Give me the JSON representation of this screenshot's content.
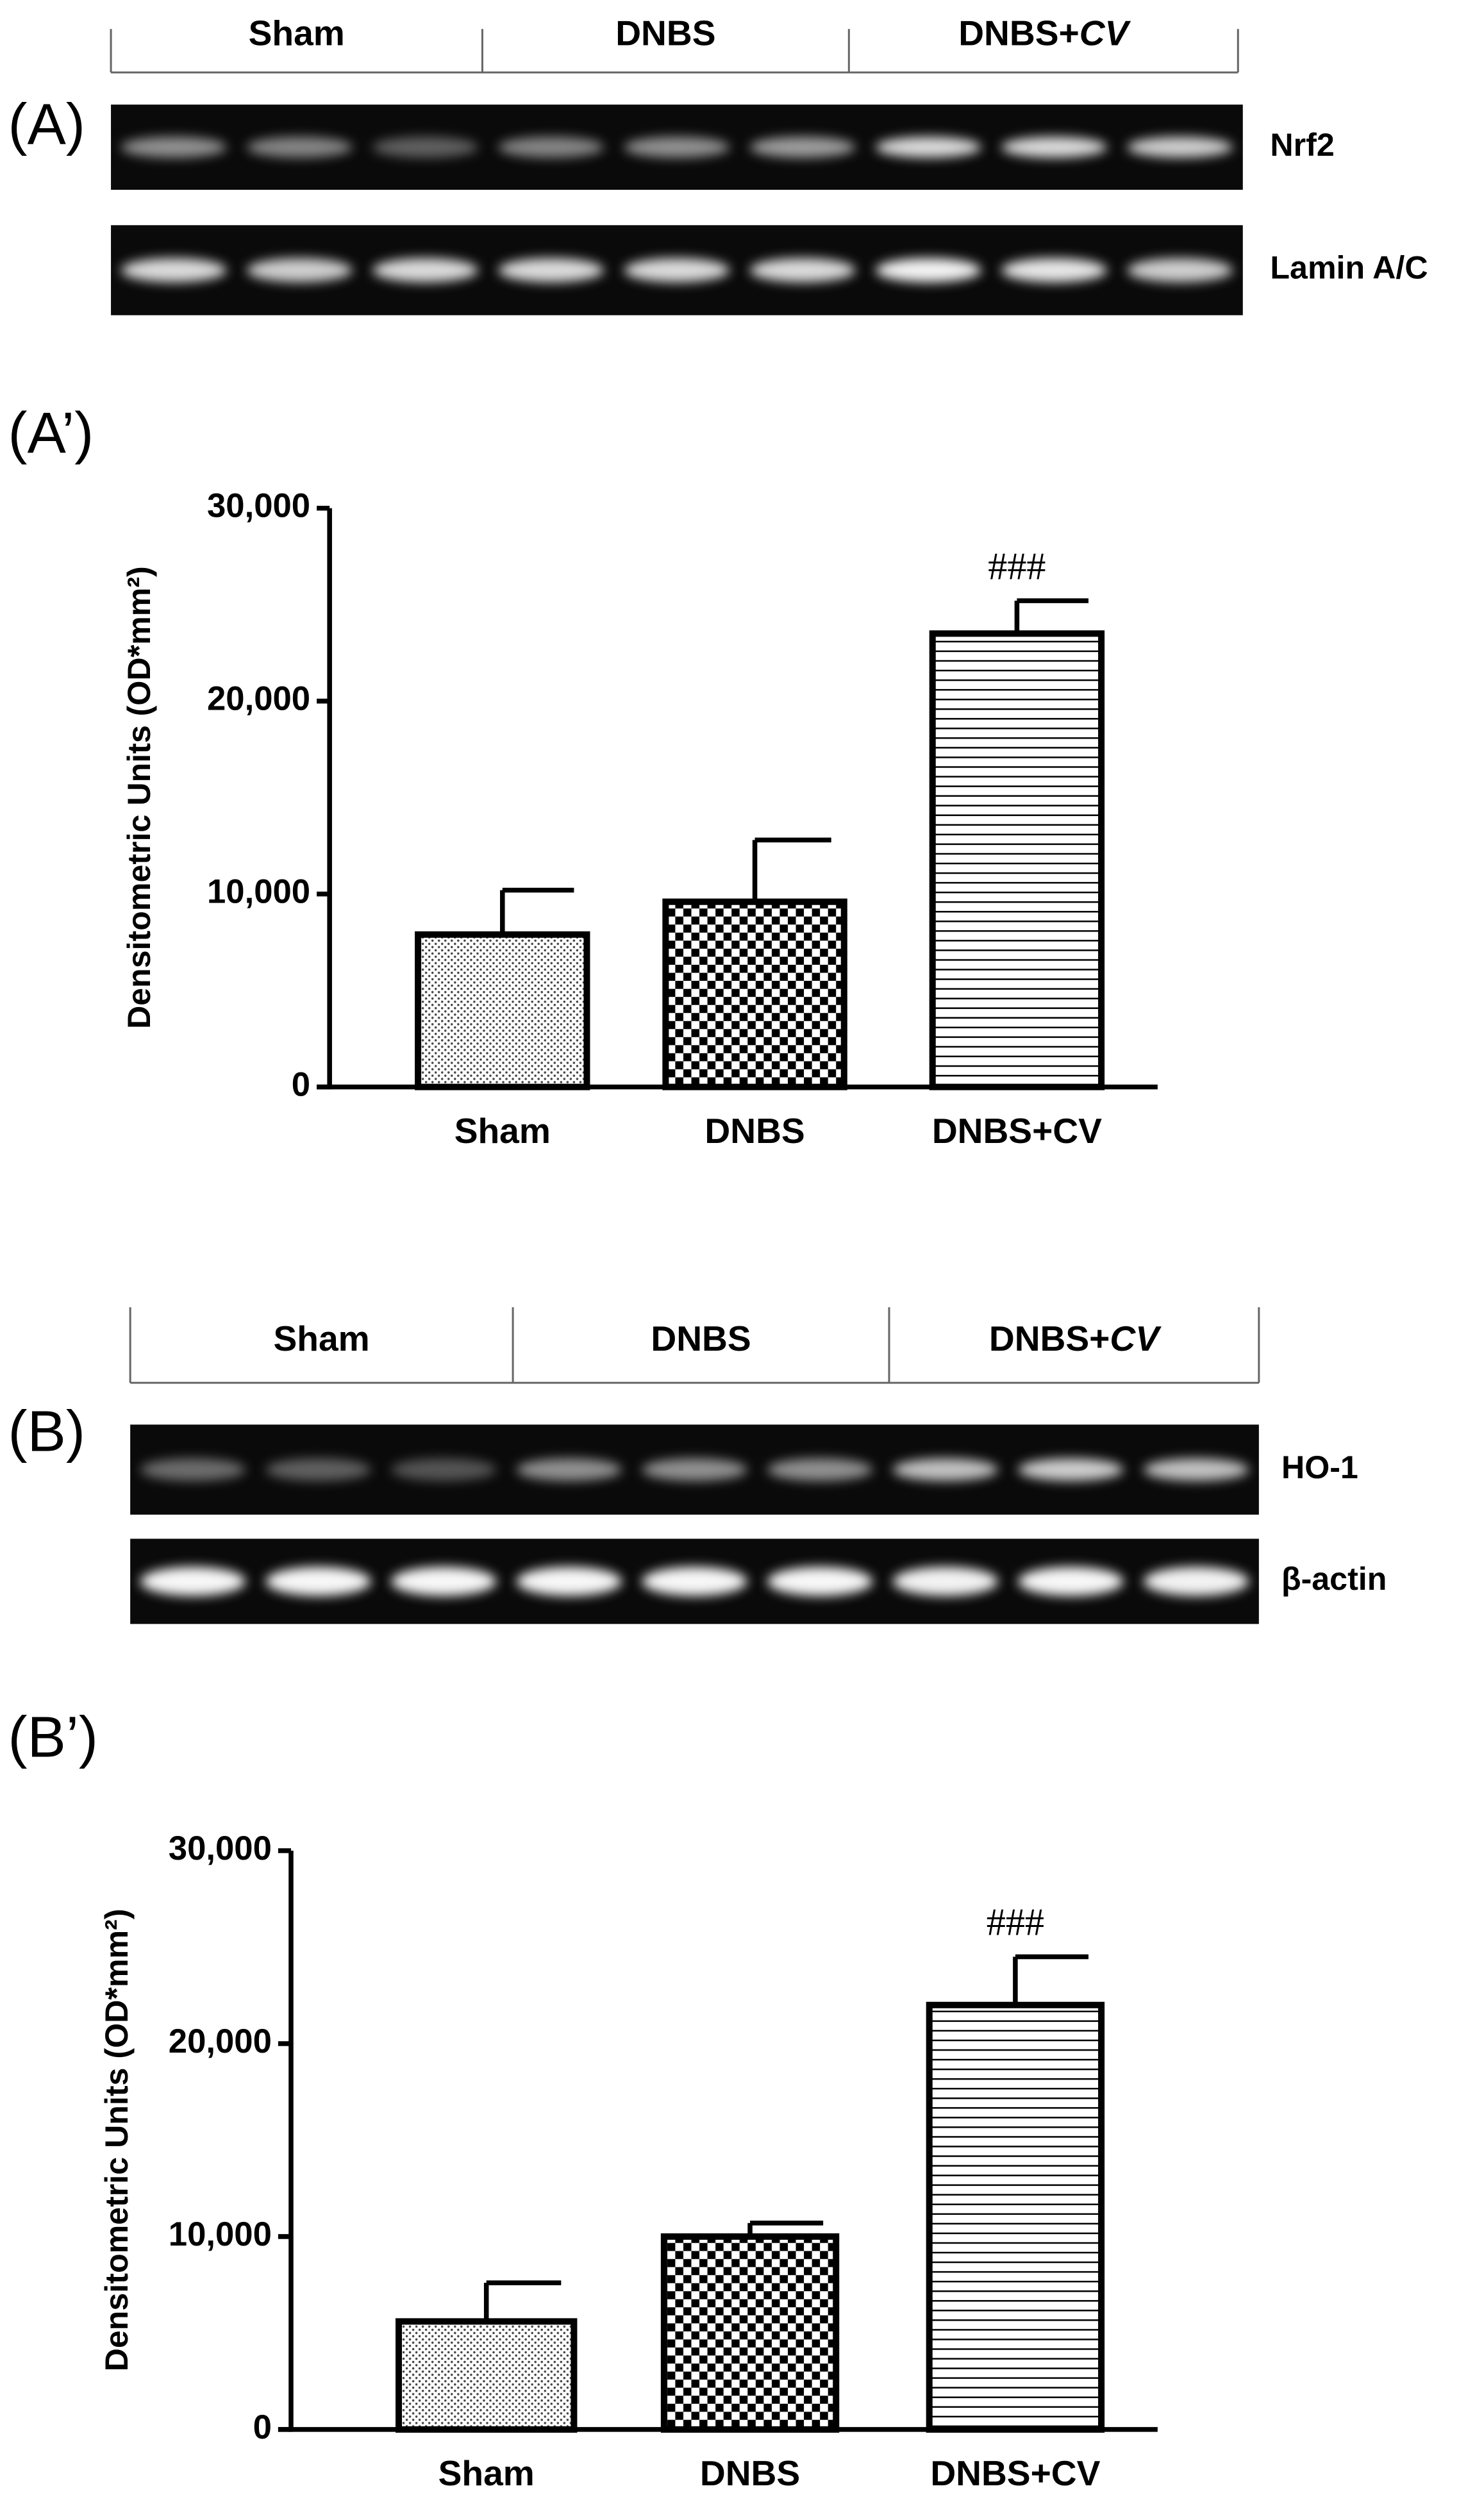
{
  "blots": [
    {
      "panel": "(A)",
      "groups": [
        [
          "Sham"
        ],
        [
          "DNBS"
        ],
        [
          "DNBS+",
          "CV"
        ]
      ],
      "rows": [
        "Nrf2",
        "Lamin A/C"
      ]
    },
    {
      "panel": "(B)",
      "groups": [
        [
          "Sham"
        ],
        [
          "DNBS"
        ],
        [
          "DNBS+",
          "CV"
        ]
      ],
      "rows": [
        "HO-1",
        "β-actin"
      ]
    }
  ],
  "chart_data": [
    {
      "type": "bar",
      "panel": "(A’)",
      "ylabel": "Densitometric Units (OD*mm²)",
      "categories": [
        "Sham",
        "DNBS",
        "DNBS+CV"
      ],
      "values": [
        7900,
        9600,
        23500
      ],
      "errors": [
        2300,
        3200,
        1700
      ],
      "patterns": [
        "dots",
        "checker",
        "hlines"
      ],
      "annotations": [
        null,
        null,
        "###"
      ],
      "ylim": [
        0,
        30000
      ],
      "yticks": [
        0,
        {
          "value": 10000,
          "label": "10,000"
        },
        {
          "value": 20000,
          "label": "20,000"
        },
        {
          "value": 30000,
          "label": "30,000"
        }
      ]
    },
    {
      "type": "bar",
      "panel": "(B’)",
      "ylabel": "Densitometric Units (OD*mm²)",
      "categories": [
        "Sham",
        "DNBS",
        "DNBS+CV"
      ],
      "values": [
        5600,
        10000,
        22000
      ],
      "errors": [
        2000,
        700,
        2500
      ],
      "patterns": [
        "dots",
        "checker",
        "hlines"
      ],
      "annotations": [
        null,
        null,
        "###"
      ],
      "ylim": [
        0,
        30000
      ],
      "yticks": [
        0,
        {
          "value": 10000,
          "label": "10,000"
        },
        {
          "value": 20000,
          "label": "20,000"
        },
        {
          "value": 30000,
          "label": "30,000"
        }
      ]
    }
  ]
}
